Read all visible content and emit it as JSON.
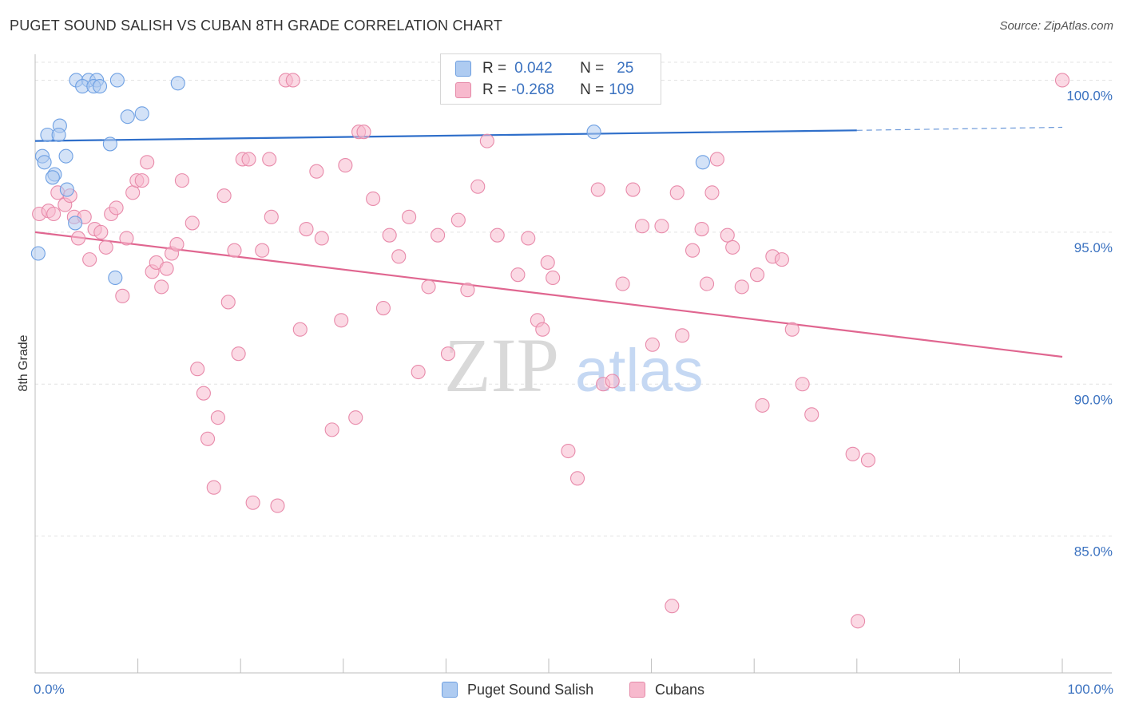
{
  "title": "PUGET SOUND SALISH VS CUBAN 8TH GRADE CORRELATION CHART",
  "source": "Source: ZipAtlas.com",
  "watermark": {
    "zip": "ZIP",
    "atlas": "atlas"
  },
  "legend": {
    "rows": [
      {
        "r_label": "R =",
        "r_value": "0.042",
        "n_label": "N =",
        "n_value": "25",
        "color": "#aecbf1",
        "border": "#6e9fe0"
      },
      {
        "r_label": "R =",
        "r_value": "-0.268",
        "n_label": "N =",
        "n_value": "109",
        "color": "#f7b9cd",
        "border": "#e58aa8"
      }
    ]
  },
  "bottom_legend": [
    {
      "label": "Puget Sound Salish",
      "color": "#aecbf1",
      "border": "#6e9fe0"
    },
    {
      "label": "Cubans",
      "color": "#f7b9cd",
      "border": "#e58aa8"
    }
  ],
  "chart_data": {
    "type": "scatter",
    "title": "PUGET SOUND SALISH VS CUBAN 8TH GRADE CORRELATION CHART",
    "xlabel": "",
    "ylabel": "8th Grade",
    "xlim": [
      0,
      100
    ],
    "ylim": [
      80.5,
      100.8
    ],
    "x_ticks_labels": [
      "0.0%",
      "100.0%"
    ],
    "y_ticks": [
      85,
      90,
      95,
      100
    ],
    "y_tick_labels": [
      "85.0%",
      "90.0%",
      "95.0%",
      "100.0%"
    ],
    "grid": true,
    "legend_position": "top-center",
    "series": [
      {
        "name": "Puget Sound Salish",
        "color": "#6ea0e3",
        "fill": "#aecbf1",
        "trend": {
          "x": [
            0,
            80
          ],
          "y": [
            98.0,
            98.35
          ],
          "dashed_to": [
            100,
            98.45
          ],
          "color": "#2f6fca"
        },
        "points": [
          [
            4.0,
            100.0
          ],
          [
            5.2,
            100.0
          ],
          [
            6.0,
            100.0
          ],
          [
            8.0,
            100.0
          ],
          [
            4.6,
            99.8
          ],
          [
            5.7,
            99.8
          ],
          [
            6.3,
            99.8
          ],
          [
            13.9,
            99.9
          ],
          [
            9.0,
            98.8
          ],
          [
            10.4,
            98.9
          ],
          [
            2.4,
            98.5
          ],
          [
            1.2,
            98.2
          ],
          [
            2.3,
            98.2
          ],
          [
            7.3,
            97.9
          ],
          [
            0.7,
            97.5
          ],
          [
            3.0,
            97.5
          ],
          [
            0.9,
            97.3
          ],
          [
            1.9,
            96.9
          ],
          [
            1.7,
            96.8
          ],
          [
            3.1,
            96.4
          ],
          [
            3.9,
            95.3
          ],
          [
            0.3,
            94.3
          ],
          [
            7.8,
            93.5
          ],
          [
            54.4,
            98.3
          ],
          [
            65.0,
            97.3
          ]
        ]
      },
      {
        "name": "Cubans",
        "color": "#e88aaa",
        "fill": "#f7b9cd",
        "trend": {
          "x": [
            0,
            100
          ],
          "y": [
            95.0,
            90.9
          ],
          "color": "#e06690"
        },
        "points": [
          [
            0.4,
            95.6
          ],
          [
            1.3,
            95.7
          ],
          [
            1.8,
            95.6
          ],
          [
            2.2,
            96.3
          ],
          [
            2.9,
            95.9
          ],
          [
            3.4,
            96.2
          ],
          [
            3.8,
            95.5
          ],
          [
            4.2,
            94.8
          ],
          [
            4.8,
            95.5
          ],
          [
            5.3,
            94.1
          ],
          [
            5.8,
            95.1
          ],
          [
            6.4,
            95.0
          ],
          [
            6.9,
            94.5
          ],
          [
            7.4,
            95.6
          ],
          [
            7.9,
            95.8
          ],
          [
            8.5,
            92.9
          ],
          [
            8.9,
            94.8
          ],
          [
            9.5,
            96.3
          ],
          [
            9.9,
            96.7
          ],
          [
            10.4,
            96.7
          ],
          [
            10.9,
            97.3
          ],
          [
            11.4,
            93.7
          ],
          [
            11.8,
            94.0
          ],
          [
            12.3,
            93.2
          ],
          [
            12.8,
            93.8
          ],
          [
            13.3,
            94.3
          ],
          [
            13.8,
            94.6
          ],
          [
            14.3,
            96.7
          ],
          [
            15.3,
            95.3
          ],
          [
            15.8,
            90.5
          ],
          [
            16.4,
            89.7
          ],
          [
            16.8,
            88.2
          ],
          [
            17.4,
            86.6
          ],
          [
            17.8,
            88.9
          ],
          [
            18.4,
            96.2
          ],
          [
            18.8,
            92.7
          ],
          [
            19.4,
            94.4
          ],
          [
            19.8,
            91.0
          ],
          [
            20.2,
            97.4
          ],
          [
            20.8,
            97.4
          ],
          [
            21.2,
            86.1
          ],
          [
            22.1,
            94.4
          ],
          [
            22.8,
            97.4
          ],
          [
            23.0,
            95.5
          ],
          [
            23.6,
            86.0
          ],
          [
            24.4,
            100.0
          ],
          [
            25.1,
            100.0
          ],
          [
            25.8,
            91.8
          ],
          [
            26.4,
            95.1
          ],
          [
            27.4,
            97.0
          ],
          [
            27.9,
            94.8
          ],
          [
            28.9,
            88.5
          ],
          [
            29.8,
            92.1
          ],
          [
            30.2,
            97.2
          ],
          [
            31.2,
            88.9
          ],
          [
            31.5,
            98.3
          ],
          [
            32.0,
            98.3
          ],
          [
            32.9,
            96.1
          ],
          [
            33.9,
            92.5
          ],
          [
            34.5,
            94.9
          ],
          [
            35.4,
            94.2
          ],
          [
            36.4,
            95.5
          ],
          [
            37.3,
            90.4
          ],
          [
            38.3,
            93.2
          ],
          [
            39.2,
            94.9
          ],
          [
            40.2,
            91.0
          ],
          [
            41.2,
            95.4
          ],
          [
            42.1,
            93.1
          ],
          [
            43.1,
            96.5
          ],
          [
            44.0,
            98.0
          ],
          [
            45.0,
            94.9
          ],
          [
            47.0,
            93.6
          ],
          [
            48.0,
            94.8
          ],
          [
            48.9,
            92.1
          ],
          [
            49.4,
            91.8
          ],
          [
            49.9,
            94.0
          ],
          [
            50.4,
            93.5
          ],
          [
            51.9,
            87.8
          ],
          [
            52.8,
            86.9
          ],
          [
            54.8,
            96.4
          ],
          [
            55.3,
            90.0
          ],
          [
            56.2,
            90.1
          ],
          [
            57.2,
            93.3
          ],
          [
            58.2,
            96.4
          ],
          [
            59.1,
            95.2
          ],
          [
            60.1,
            91.3
          ],
          [
            61.0,
            95.2
          ],
          [
            62.0,
            82.7
          ],
          [
            62.5,
            96.3
          ],
          [
            63.0,
            91.6
          ],
          [
            64.0,
            94.4
          ],
          [
            64.9,
            95.1
          ],
          [
            65.4,
            93.3
          ],
          [
            65.9,
            96.3
          ],
          [
            66.4,
            97.4
          ],
          [
            67.4,
            94.9
          ],
          [
            67.9,
            94.5
          ],
          [
            68.8,
            93.2
          ],
          [
            70.3,
            93.6
          ],
          [
            70.8,
            89.3
          ],
          [
            71.8,
            94.2
          ],
          [
            72.7,
            94.1
          ],
          [
            73.7,
            91.8
          ],
          [
            74.7,
            90.0
          ],
          [
            75.6,
            89.0
          ],
          [
            79.6,
            87.7
          ],
          [
            80.1,
            82.2
          ],
          [
            81.1,
            87.5
          ],
          [
            100.0,
            100.0
          ]
        ]
      }
    ]
  }
}
